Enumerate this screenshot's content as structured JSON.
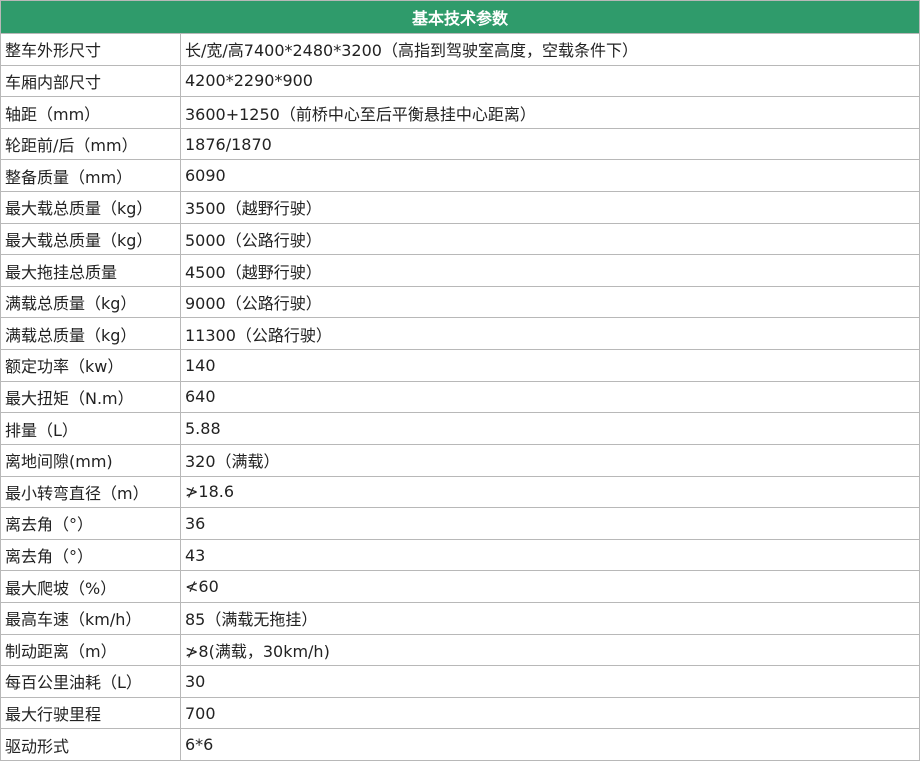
{
  "header": {
    "title": "基本技术参数"
  },
  "table": {
    "rows": [
      [
        "整车外形尺寸",
        "长/宽/高7400*2480*3200（高指到驾驶室高度，空载条件下）"
      ],
      [
        "车厢内部尺寸",
        "4200*2290*900"
      ],
      [
        "轴距（mm）",
        "3600+1250（前桥中心至后平衡悬挂中心距离）"
      ],
      [
        "轮距前/后（mm）",
        "1876/1870"
      ],
      [
        "整备质量（mm）",
        "6090"
      ],
      [
        "最大载总质量（kg）",
        "3500（越野行驶）"
      ],
      [
        "最大载总质量（kg）",
        "5000（公路行驶）"
      ],
      [
        "最大拖挂总质量",
        "4500（越野行驶）"
      ],
      [
        "满载总质量（kg）",
        "9000（公路行驶）"
      ],
      [
        "满载总质量（kg）",
        "11300（公路行驶）"
      ],
      [
        "额定功率（kw）",
        "140"
      ],
      [
        "最大扭矩（N.m）",
        "640"
      ],
      [
        "排量（L）",
        "5.88"
      ],
      [
        "离地间隙(mm)",
        "320（满载）"
      ],
      [
        "最小转弯直径（m）",
        "≯18.6"
      ],
      [
        "离去角（°）",
        "36"
      ],
      [
        "离去角（°）",
        "43"
      ],
      [
        "最大爬坡（%）",
        "≮60"
      ],
      [
        "最高车速（km/h）",
        "85（满载无拖挂）"
      ],
      [
        "制动距离（m）",
        "≯8(满载，30km/h)"
      ],
      [
        "每百公里油耗（L）",
        "30"
      ],
      [
        "最大行驶里程",
        "700"
      ],
      [
        "驱动形式",
        "6*6"
      ]
    ]
  }
}
